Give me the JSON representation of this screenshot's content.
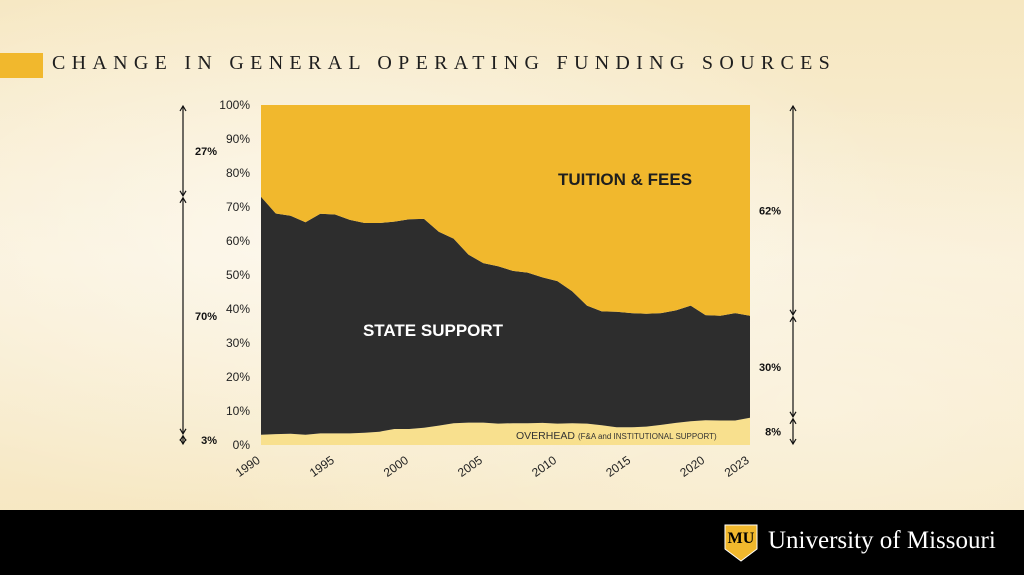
{
  "page": {
    "title": "CHANGE IN GENERAL OPERATING FUNDING SOURCES"
  },
  "chart_data": {
    "type": "area",
    "stacked": true,
    "x": [
      1990,
      1991,
      1992,
      1993,
      1994,
      1995,
      1996,
      1997,
      1998,
      1999,
      2000,
      2001,
      2002,
      2003,
      2004,
      2005,
      2006,
      2007,
      2008,
      2009,
      2010,
      2011,
      2012,
      2013,
      2014,
      2015,
      2016,
      2017,
      2018,
      2019,
      2020,
      2021,
      2022,
      2023
    ],
    "series": [
      {
        "name": "OVERHEAD",
        "color": "#f8e08e",
        "values": [
          3.0,
          3.2,
          3.3,
          3.0,
          3.4,
          3.4,
          3.4,
          3.6,
          3.9,
          4.7,
          4.7,
          5.1,
          5.7,
          6.4,
          6.6,
          6.6,
          6.3,
          6.4,
          6.4,
          6.5,
          6.3,
          6.4,
          6.3,
          5.8,
          5.2,
          5.2,
          5.4,
          5.9,
          6.5,
          7.0,
          7.3,
          7.2,
          7.2,
          8.0
        ]
      },
      {
        "name": "STATE SUPPORT",
        "color": "#2d2d2d",
        "values": [
          70.0,
          64.9,
          64.1,
          62.5,
          64.6,
          64.4,
          62.8,
          61.7,
          61.4,
          61.0,
          61.7,
          61.4,
          57.0,
          54.3,
          49.4,
          46.9,
          46.3,
          44.8,
          44.3,
          42.8,
          41.9,
          38.8,
          34.7,
          33.5,
          34.0,
          33.6,
          33.2,
          32.9,
          33.1,
          34.0,
          30.9,
          30.8,
          31.6,
          30.0
        ]
      },
      {
        "name": "TUITION & FEES",
        "color": "#f1b82d",
        "values": [
          27.0,
          31.9,
          32.6,
          34.5,
          32.0,
          32.2,
          33.8,
          34.7,
          34.7,
          34.3,
          33.6,
          33.5,
          37.3,
          39.3,
          44.0,
          46.5,
          47.4,
          48.8,
          49.3,
          50.7,
          51.8,
          54.8,
          59.0,
          60.7,
          60.8,
          61.2,
          61.4,
          61.2,
          60.4,
          59.0,
          61.8,
          62.0,
          61.2,
          62.0
        ]
      }
    ],
    "series_labels": {
      "tuition": "TUITION & FEES",
      "state": "STATE SUPPORT",
      "overhead_main": "OVERHEAD",
      "overhead_sub": "(F&A and INSTITUTIONAL  SUPPORT)"
    },
    "ylim": [
      0,
      100
    ],
    "y_ticks": [
      "0%",
      "10%",
      "20%",
      "30%",
      "40%",
      "50%",
      "60%",
      "70%",
      "80%",
      "90%",
      "100%"
    ],
    "x_ticks": [
      "1990",
      "1995",
      "2000",
      "2005",
      "2010",
      "2015",
      "2020",
      "2023"
    ],
    "x_tick_years": [
      1990,
      1995,
      2000,
      2005,
      2010,
      2015,
      2020,
      2023
    ],
    "grid": false,
    "left_brackets": [
      {
        "label": "27%",
        "from": 73,
        "to": 100
      },
      {
        "label": "70%",
        "from": 3,
        "to": 73
      },
      {
        "label": "3%",
        "from": 0,
        "to": 3
      }
    ],
    "right_brackets": [
      {
        "label": "62%",
        "from": 38,
        "to": 100
      },
      {
        "label": "30%",
        "from": 8,
        "to": 38
      },
      {
        "label": "8%",
        "from": 0,
        "to": 8
      }
    ]
  },
  "footer": {
    "university": "University of Missouri",
    "logo_letters": "MU"
  },
  "colors": {
    "gold": "#f1b82d",
    "black": "#000000",
    "state": "#2d2d2d",
    "overhead": "#f8e08e"
  }
}
